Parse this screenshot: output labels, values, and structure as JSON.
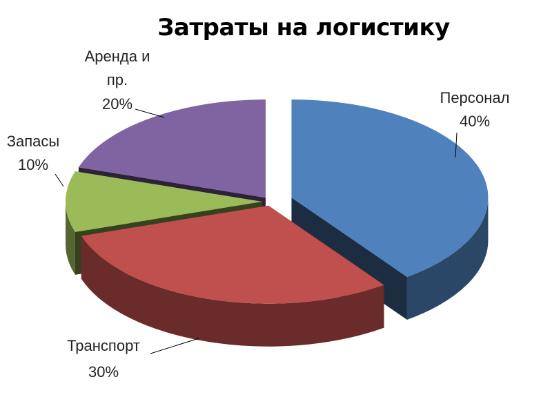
{
  "chart_data": {
    "type": "pie",
    "title": "Затраты на логистику",
    "categories": [
      "Персонал",
      "Транспорт",
      "Запасы",
      "Аренда и пр."
    ],
    "values": [
      40,
      30,
      10,
      20
    ],
    "value_labels": [
      "40%",
      "30%",
      "10%",
      "20%"
    ],
    "colors": [
      "#4f81bd",
      "#c0504d",
      "#9bbb59",
      "#8064a2"
    ]
  }
}
